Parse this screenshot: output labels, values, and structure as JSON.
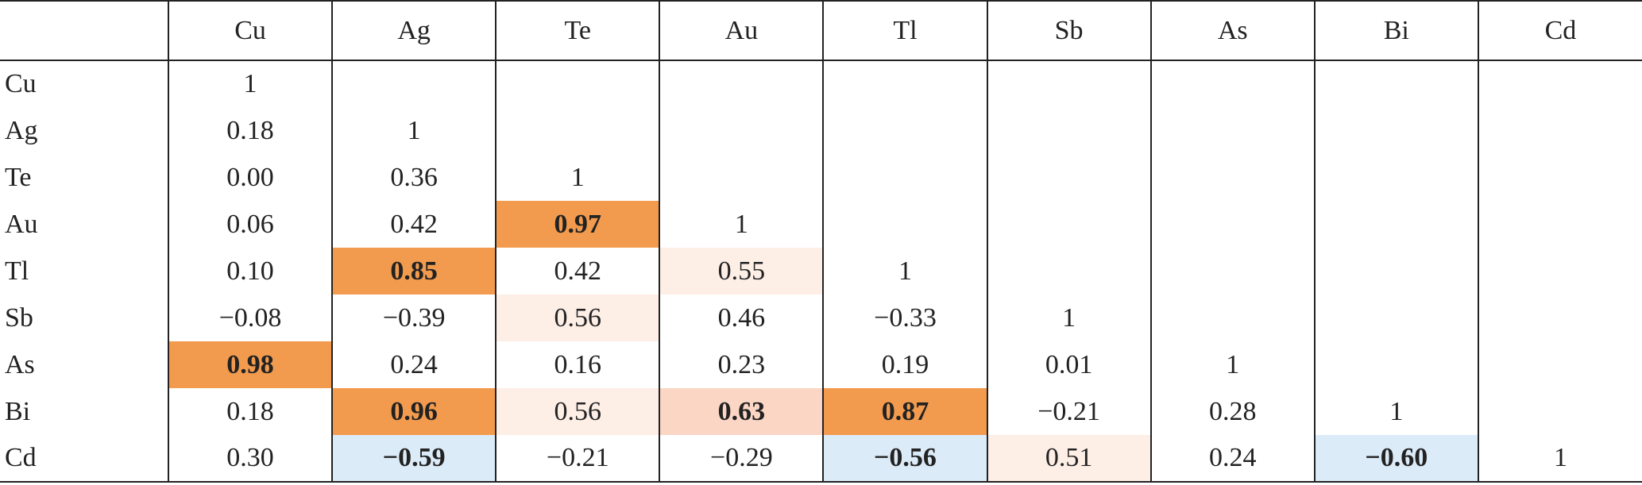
{
  "table": {
    "header": [
      "Cu",
      "Ag",
      "Te",
      "Au",
      "Tl",
      "Sb",
      "As",
      "Bi",
      "Cd"
    ],
    "rows": [
      {
        "label": "Cu",
        "cells": [
          "1"
        ]
      },
      {
        "label": "Ag",
        "cells": [
          "0.18",
          "1"
        ]
      },
      {
        "label": "Te",
        "cells": [
          "0.00",
          "0.36",
          "1"
        ]
      },
      {
        "label": "Au",
        "cells": [
          "0.06",
          "0.42",
          {
            "text": "0.97",
            "fill": "#f29b4e",
            "bold": true
          },
          "1"
        ]
      },
      {
        "label": "Tl",
        "cells": [
          "0.10",
          {
            "text": "0.85",
            "fill": "#f29b4e",
            "bold": true
          },
          "0.42",
          {
            "text": "0.55",
            "fill": "#fdeee6",
            "bold": false
          },
          "1"
        ]
      },
      {
        "label": "Sb",
        "cells": [
          "−0.08",
          "−0.39",
          {
            "text": "0.56",
            "fill": "#fdeee6",
            "bold": false
          },
          "0.46",
          "−0.33",
          "1"
        ]
      },
      {
        "label": "As",
        "cells": [
          {
            "text": "0.98",
            "fill": "#f29b4e",
            "bold": true
          },
          "0.24",
          "0.16",
          "0.23",
          "0.19",
          "0.01",
          "1"
        ]
      },
      {
        "label": "Bi",
        "cells": [
          "0.18",
          {
            "text": "0.96",
            "fill": "#f29b4e",
            "bold": true
          },
          {
            "text": "0.56",
            "fill": "#fdeee6",
            "bold": false
          },
          {
            "text": "0.63",
            "fill": "#fbd6c5",
            "bold": true
          },
          {
            "text": "0.87",
            "fill": "#f29b4e",
            "bold": true
          },
          "−0.21",
          "0.28",
          "1"
        ]
      },
      {
        "label": "Cd",
        "cells": [
          "0.30",
          {
            "text": "−0.59",
            "fill": "#dcebf8",
            "bold": true
          },
          "−0.21",
          "−0.29",
          {
            "text": "−0.56",
            "fill": "#dcebf8",
            "bold": true
          },
          {
            "text": "0.51",
            "fill": "#fdeee6",
            "bold": false
          },
          "0.24",
          {
            "text": "−0.60",
            "fill": "#dcebf8",
            "bold": true
          },
          "1"
        ]
      }
    ]
  }
}
